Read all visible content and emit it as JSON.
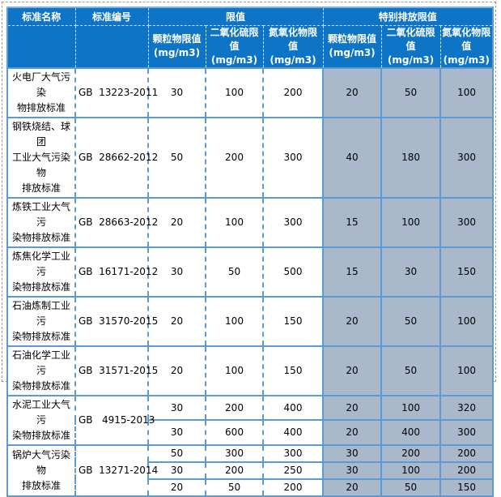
{
  "colors": {
    "header_bg": "#0d74c6",
    "header_text": "#ffffff",
    "special_bg": "#aab8cb",
    "grid": "#5b9bd5",
    "page_break_dash": "#9a9a9a",
    "body_text": "#000000"
  },
  "table": {
    "header": {
      "name": "标准名称",
      "code": "标准编号",
      "limit_group": "限值",
      "special_group": "特别排放限值",
      "sub": [
        "颗粒物限值\n(mg/m3)",
        "二氧化硫限\n值 (mg/m3)",
        "氮氧化物限\n值 (mg/m3)",
        "颗粒物限值\n(mg/m3)",
        "二氧化硫限\n值 (mg/m3)",
        "氮氧化物限\n值 (mg/m3)"
      ]
    },
    "rows": [
      {
        "name": "火电厂大气污染\n物排放标准",
        "code": "GB  13223-2011",
        "sub": [
          [
            "30",
            "100",
            "200",
            "20",
            "50",
            "100"
          ]
        ]
      },
      {
        "name": "钢铁烧结、球团\n工业大气污染物\n排放标准",
        "code": "GB  28662-2012",
        "sub": [
          [
            "50",
            "200",
            "300",
            "40",
            "180",
            "300"
          ]
        ]
      },
      {
        "name": "炼铁工业大气污\n染物排放标准",
        "code": "GB  28663-2012",
        "sub": [
          [
            "20",
            "100",
            "300",
            "15",
            "100",
            "300"
          ]
        ]
      },
      {
        "name": "炼焦化学工业污\n染物排放标准",
        "code": "GB  16171-2012",
        "sub": [
          [
            "30",
            "50",
            "500",
            "15",
            "30",
            "150"
          ]
        ]
      },
      {
        "name": "石油炼制工业污\n染物排放标准",
        "code": "GB  31570-2015",
        "sub": [
          [
            "20",
            "100",
            "150",
            "20",
            "50",
            "100"
          ]
        ]
      },
      {
        "name": "石油化学工业污\n染物排放标准",
        "code": "GB  31571-2015",
        "sub": [
          [
            "20",
            "100",
            "150",
            "20",
            "50",
            "100"
          ]
        ]
      },
      {
        "name": "水泥工业大气污\n染物排放标准",
        "code": "GB   4915-2013",
        "sub": [
          [
            "30",
            "200",
            "400",
            "20",
            "100",
            "320"
          ],
          [
            "30",
            "600",
            "400",
            "20",
            "400",
            "300"
          ]
        ]
      },
      {
        "name": "锅炉大气污染物\n排放标准",
        "code": "GB  13271-2014",
        "sub": [
          [
            "50",
            "300",
            "300",
            "30",
            "200",
            "200"
          ],
          [
            "30",
            "200",
            "250",
            "30",
            "100",
            "200"
          ],
          [
            "20",
            "50",
            "200",
            "20",
            "50",
            "150"
          ]
        ]
      }
    ]
  }
}
